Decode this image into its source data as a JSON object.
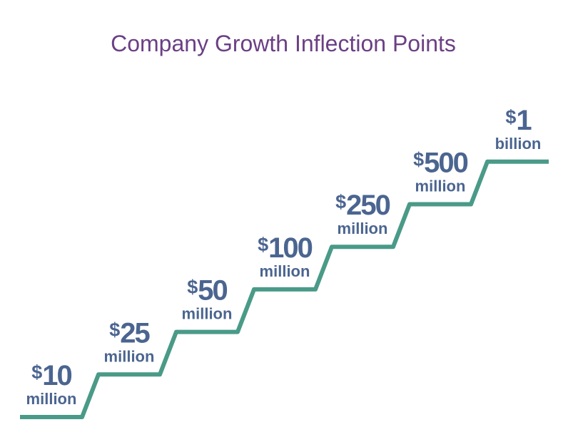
{
  "title": "Company Growth Inflection Points",
  "steps": [
    {
      "symbol": "$",
      "amount": "10",
      "unit": "million"
    },
    {
      "symbol": "$",
      "amount": "25",
      "unit": "million"
    },
    {
      "symbol": "$",
      "amount": "50",
      "unit": "million"
    },
    {
      "symbol": "$",
      "amount": "100",
      "unit": "million"
    },
    {
      "symbol": "$",
      "amount": "250",
      "unit": "million"
    },
    {
      "symbol": "$",
      "amount": "500",
      "unit": "million"
    },
    {
      "symbol": "$",
      "amount": "1",
      "unit": "billion"
    }
  ]
}
